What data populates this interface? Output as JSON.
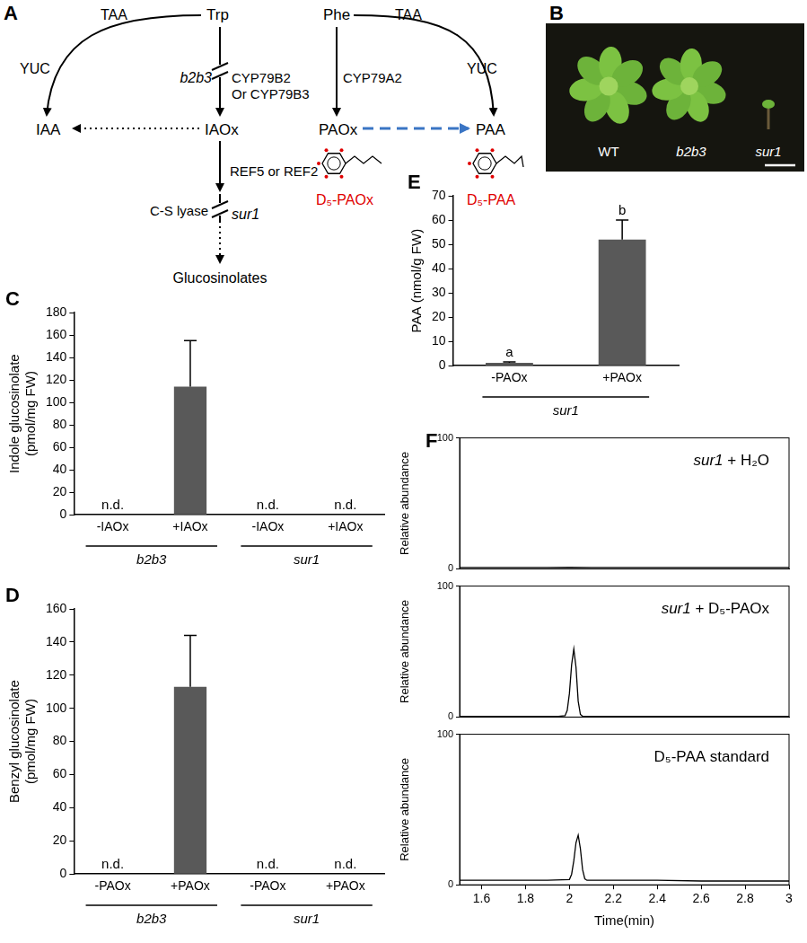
{
  "diagram": {
    "panel": "A",
    "labels": {
      "taa_left": "TAA",
      "trp": "Trp",
      "phe": "Phe",
      "taa_right": "TAA",
      "yuc_left": "YUC",
      "yuc_right": "YUC",
      "b2b3": "b2b3",
      "cyp79b2": "CYP79B2",
      "cyp79b3": "Or CYP79B3",
      "cyp79a2": "CYP79A2",
      "iaa": "IAA",
      "iaox": "IAOx",
      "paox": "PAOx",
      "paa": "PAA",
      "d5paox": "D₅-PAOx",
      "d5paa": "D₅-PAA",
      "ref": "REF5 or REF2",
      "cs_lyase": "C-S lyase",
      "sur1": "sur1",
      "glucosinolates": "Glucosinolates"
    }
  },
  "photo": {
    "panel": "B",
    "labels": [
      "WT",
      "b2b3",
      "sur1"
    ]
  },
  "chart_data": [
    {
      "panel": "C",
      "type": "bar",
      "categories": [
        "-IAOx",
        "+IAOx",
        "-IAOx",
        "+IAOx"
      ],
      "groups": [
        "b2b3",
        "b2b3",
        "sur1",
        "sur1"
      ],
      "values": [
        null,
        114,
        null,
        null
      ],
      "errors": [
        null,
        41,
        null,
        null
      ],
      "value_labels": [
        "n.d.",
        null,
        "n.d.",
        "n.d."
      ],
      "ylabel": [
        "Indole glucosinolate",
        "(pmol/mg FW)"
      ],
      "ylim": [
        0,
        180
      ],
      "yticks": [
        0,
        20,
        40,
        60,
        80,
        100,
        120,
        140,
        160,
        180
      ],
      "color": "#595959",
      "grid": false
    },
    {
      "panel": "D",
      "type": "bar",
      "categories": [
        "-PAOx",
        "+PAOx",
        "-PAOx",
        "+PAOx"
      ],
      "groups": [
        "b2b3",
        "b2b3",
        "sur1",
        "sur1"
      ],
      "values": [
        null,
        113,
        null,
        null
      ],
      "errors": [
        null,
        31,
        null,
        null
      ],
      "value_labels": [
        "n.d.",
        null,
        "n.d.",
        "n.d."
      ],
      "ylabel": [
        "Benzyl glucosinolate",
        "(pmol/mg FW)"
      ],
      "ylim": [
        0,
        160
      ],
      "yticks": [
        0,
        20,
        40,
        60,
        80,
        100,
        120,
        140,
        160
      ],
      "color": "#595959",
      "grid": false
    },
    {
      "panel": "E",
      "type": "bar",
      "categories": [
        "-PAOx",
        "+PAOx"
      ],
      "groups": [
        "sur1",
        "sur1"
      ],
      "values": [
        1.2,
        52
      ],
      "errors": [
        0.4,
        8
      ],
      "letters": [
        "a",
        "b"
      ],
      "ylabel": "PAA (nmol/g FW)",
      "ylim": [
        0,
        70
      ],
      "yticks": [
        0,
        10,
        20,
        30,
        40,
        50,
        60,
        70
      ],
      "color": "#595959",
      "grid": false
    },
    {
      "panel": "F",
      "type": "line",
      "xlabel": "Time(min)",
      "ylabel": "Relative abundance",
      "xlim": [
        1.5,
        3.0
      ],
      "xticks": [
        1.6,
        1.8,
        2,
        2.2,
        2.4,
        2.6,
        2.8,
        3
      ],
      "ylim": [
        0,
        100
      ],
      "yticks": [
        0,
        100
      ],
      "grid": false,
      "series": [
        {
          "name": "sur1 + H₂O",
          "color": "#000000",
          "x": [
            1.5,
            1.6,
            1.7,
            1.8,
            1.9,
            2.0,
            2.1,
            2.2,
            2.3,
            2.4,
            2.5,
            2.6,
            2.7,
            2.8,
            2.9,
            3.0
          ],
          "values": [
            1,
            1,
            1,
            1,
            1,
            1.2,
            1,
            1,
            1,
            1,
            1,
            1,
            1,
            1,
            1,
            1
          ]
        },
        {
          "name": "sur1 + D₅-PAOx",
          "color": "#000000",
          "x": [
            1.5,
            1.6,
            1.7,
            1.8,
            1.9,
            1.95,
            1.98,
            1.99,
            2.0,
            2.01,
            2.02,
            2.03,
            2.04,
            2.05,
            2.06,
            2.1,
            2.2,
            2.4,
            2.6,
            2.8,
            3.0
          ],
          "values": [
            0.5,
            0.5,
            0.5,
            0.5,
            0.5,
            0.6,
            1,
            5,
            18,
            40,
            52,
            38,
            12,
            2,
            0.6,
            0.5,
            0.5,
            0.5,
            0.5,
            0.5,
            0.5
          ]
        },
        {
          "name": "D₅-PAA standard",
          "color": "#000000",
          "x": [
            1.5,
            1.6,
            1.7,
            1.8,
            1.9,
            2.0,
            2.01,
            2.02,
            2.03,
            2.04,
            2.05,
            2.06,
            2.07,
            2.08,
            2.1,
            2.2,
            2.4,
            2.6,
            2.8,
            3.0
          ],
          "values": [
            3,
            3,
            3,
            3,
            3,
            3.5,
            7,
            16,
            28,
            33,
            24,
            10,
            4,
            3,
            3,
            3,
            3,
            2.5,
            2.5,
            2.5
          ]
        }
      ]
    }
  ]
}
